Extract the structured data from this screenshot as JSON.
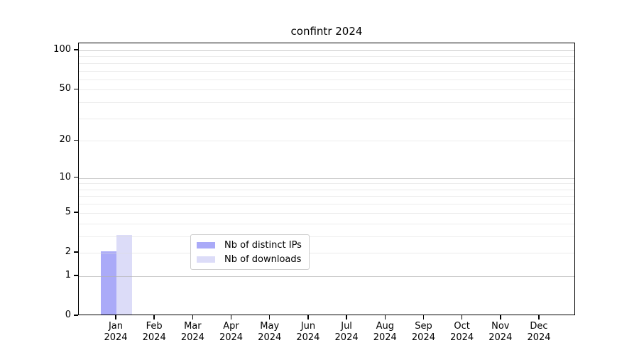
{
  "title": "confintr 2024",
  "chart_data": {
    "type": "bar",
    "title": "confintr 2024",
    "categories": [
      "Jan 2024",
      "Feb 2024",
      "Mar 2024",
      "Apr 2024",
      "May 2024",
      "Jun 2024",
      "Jul 2024",
      "Aug 2024",
      "Sep 2024",
      "Oct 2024",
      "Nov 2024",
      "Dec 2024"
    ],
    "series": [
      {
        "name": "Nb of distinct IPs",
        "color": "#aaaaf8",
        "values": [
          2,
          0,
          0,
          0,
          0,
          0,
          0,
          0,
          0,
          0,
          0,
          0
        ]
      },
      {
        "name": "Nb of downloads",
        "color": "#dcdcf8",
        "values": [
          3,
          0,
          0,
          0,
          0,
          0,
          0,
          0,
          0,
          0,
          0,
          0
        ]
      }
    ],
    "xlabel": "",
    "ylabel": "",
    "yscale": "log1p",
    "ylim": [
      0,
      113
    ],
    "y_ticks": [
      0,
      1,
      2,
      5,
      10,
      20,
      50,
      100
    ],
    "y_minor_ticks": [
      3,
      4,
      6,
      7,
      8,
      9,
      30,
      40,
      60,
      70,
      80,
      90
    ],
    "grid": "horizontal",
    "grid_above_bars": true,
    "legend_position": "lower center"
  },
  "colors": {
    "bar_distinct_ips": "#aaaaf8",
    "bar_downloads": "#dcdcf8",
    "major_grid": "#b0b0b0",
    "minor_grid": "#e8e8e8",
    "axis": "#000000",
    "legend_border": "#cccccc",
    "background": "#ffffff"
  }
}
